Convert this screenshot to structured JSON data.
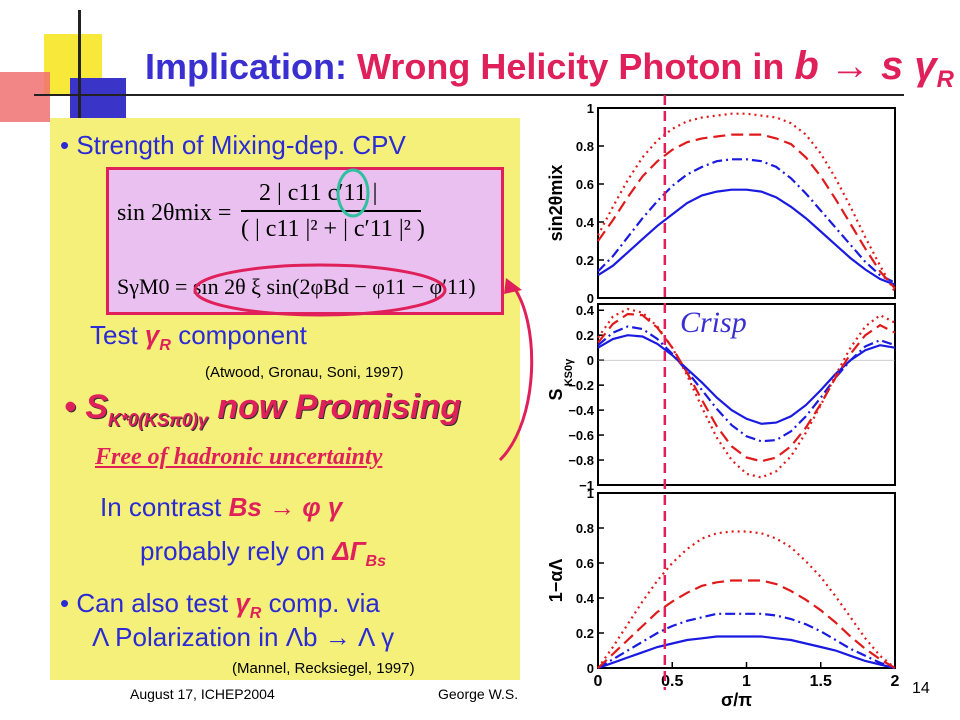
{
  "title": {
    "part1": "Implication",
    "colon": ":",
    "part2": "Wrong Helicity Photon in",
    "process": "b → s γ",
    "process_sub": "R"
  },
  "bullets": {
    "b1": "Strength of Mixing-dep. CPV",
    "test_prefix": "Test",
    "test_gamma": "γ",
    "test_sub": "R",
    "test_suffix": "component",
    "citation1": "(Atwood, Gronau, Soni, 1997)",
    "b2_main": "S",
    "b2_sub": "K*0(KSπ0)γ",
    "b2_rest": "now Promising",
    "b2_free": "Free of hadronic uncertainty",
    "contrast_prefix": "In contrast",
    "contrast_proc": "Bs → φ γ",
    "rely_prefix": "probably rely on",
    "rely_sym": "ΔΓ",
    "rely_sub": "Bs",
    "b3_prefix": "Can also test",
    "b3_gamma": "γ",
    "b3_sub": "R",
    "b3_suffix": "comp. via",
    "lambda_line": "Λ Polarization in Λb → Λ γ",
    "citation2": "(Mannel, Recksiegel, 1997)"
  },
  "formula": {
    "line1_lhs": "sin 2θmix =",
    "line1_num": "2 | c11 c′11 |",
    "line1_den": "( | c11 |² + | c′11 |² )",
    "line2": "SγM0 = sin 2θ ξ sin(2φBd − φ11 − φ′11)"
  },
  "annotation": {
    "crisp": "Crisp"
  },
  "footer": {
    "date": "August 17, ICHEP2004",
    "author": "George W.S.",
    "page": "14"
  },
  "colors": {
    "title_blue": "#3a2fd0",
    "accent_red": "#e0205a",
    "panel_yellow": "#f4f07a",
    "formula_bg": "#e9c0ef",
    "curve_blue": "#1a1ae0",
    "curve_red": "#e01a1a",
    "circle_cyan": "#30c0a0"
  },
  "chart_data": [
    {
      "type": "line",
      "ylabel": "sin2θmix",
      "xlim": [
        0,
        2
      ],
      "ylim": [
        0,
        1
      ],
      "yticks": [
        "0",
        "0.2",
        "0.4",
        "0.6",
        "0.8",
        "1"
      ],
      "x": [
        0,
        0.1,
        0.2,
        0.3,
        0.4,
        0.5,
        0.6,
        0.7,
        0.8,
        0.9,
        1.0,
        1.1,
        1.2,
        1.3,
        1.4,
        1.5,
        1.6,
        1.7,
        1.8,
        1.9,
        2.0
      ],
      "series": [
        {
          "style": "solid",
          "color": "#1a1ae0",
          "values": [
            0.12,
            0.17,
            0.24,
            0.31,
            0.38,
            0.44,
            0.5,
            0.54,
            0.56,
            0.57,
            0.57,
            0.56,
            0.53,
            0.48,
            0.42,
            0.35,
            0.28,
            0.21,
            0.15,
            0.1,
            0.07
          ]
        },
        {
          "style": "dashdot",
          "color": "#1a1ae0",
          "values": [
            0.14,
            0.22,
            0.32,
            0.42,
            0.51,
            0.59,
            0.65,
            0.69,
            0.72,
            0.73,
            0.73,
            0.72,
            0.69,
            0.63,
            0.55,
            0.46,
            0.37,
            0.28,
            0.19,
            0.12,
            0.08
          ]
        },
        {
          "style": "dashed",
          "color": "#e01a1a",
          "values": [
            0.3,
            0.41,
            0.53,
            0.64,
            0.72,
            0.78,
            0.82,
            0.84,
            0.85,
            0.86,
            0.86,
            0.86,
            0.84,
            0.81,
            0.74,
            0.64,
            0.52,
            0.39,
            0.26,
            0.14,
            0.05
          ]
        },
        {
          "style": "dotted",
          "color": "#e01a1a",
          "values": [
            0.33,
            0.48,
            0.62,
            0.74,
            0.83,
            0.89,
            0.93,
            0.95,
            0.96,
            0.97,
            0.97,
            0.96,
            0.95,
            0.92,
            0.86,
            0.76,
            0.63,
            0.48,
            0.32,
            0.17,
            0.03
          ]
        }
      ]
    },
    {
      "type": "line",
      "ylabel": "S",
      "ylabel_sub": "KS0γ",
      "xlim": [
        0,
        2
      ],
      "ylim": [
        -1,
        0.45
      ],
      "yticks": [
        "−1",
        "−0.8",
        "−0.6",
        "−0.4",
        "−0.2",
        "0",
        "0.2",
        "0.4"
      ],
      "x": [
        0,
        0.1,
        0.2,
        0.3,
        0.4,
        0.5,
        0.6,
        0.7,
        0.8,
        0.9,
        1.0,
        1.1,
        1.2,
        1.3,
        1.4,
        1.5,
        1.6,
        1.7,
        1.8,
        1.9,
        2.0
      ],
      "series": [
        {
          "style": "solid",
          "color": "#1a1ae0",
          "values": [
            0.1,
            0.17,
            0.2,
            0.19,
            0.13,
            0.04,
            -0.07,
            -0.18,
            -0.3,
            -0.4,
            -0.47,
            -0.51,
            -0.5,
            -0.45,
            -0.36,
            -0.24,
            -0.11,
            0.0,
            0.08,
            0.12,
            0.1
          ]
        },
        {
          "style": "dashdot",
          "color": "#1a1ae0",
          "values": [
            0.12,
            0.22,
            0.27,
            0.25,
            0.17,
            0.05,
            -0.09,
            -0.24,
            -0.39,
            -0.52,
            -0.61,
            -0.65,
            -0.64,
            -0.57,
            -0.45,
            -0.3,
            -0.14,
            0.0,
            0.11,
            0.16,
            0.12
          ]
        },
        {
          "style": "dashed",
          "color": "#e01a1a",
          "values": [
            0.14,
            0.29,
            0.37,
            0.36,
            0.26,
            0.1,
            -0.1,
            -0.32,
            -0.53,
            -0.69,
            -0.78,
            -0.81,
            -0.78,
            -0.69,
            -0.54,
            -0.35,
            -0.14,
            0.05,
            0.2,
            0.28,
            0.22
          ]
        },
        {
          "style": "dotted",
          "color": "#e01a1a",
          "values": [
            0.18,
            0.35,
            0.41,
            0.38,
            0.27,
            0.1,
            -0.12,
            -0.38,
            -0.62,
            -0.8,
            -0.91,
            -0.94,
            -0.89,
            -0.77,
            -0.58,
            -0.36,
            -0.12,
            0.1,
            0.27,
            0.36,
            0.3
          ]
        }
      ]
    },
    {
      "type": "line",
      "ylabel": "1−αΛ",
      "xlabel": "σ/π",
      "xlim": [
        0,
        2
      ],
      "ylim": [
        0,
        1
      ],
      "xticks": [
        "0",
        "0.5",
        "1",
        "1.5",
        "2"
      ],
      "yticks": [
        "0",
        "0.2",
        "0.4",
        "0.6",
        "0.8",
        "1"
      ],
      "x": [
        0,
        0.1,
        0.2,
        0.3,
        0.4,
        0.5,
        0.6,
        0.7,
        0.8,
        0.9,
        1.0,
        1.1,
        1.2,
        1.3,
        1.4,
        1.5,
        1.6,
        1.7,
        1.8,
        1.9,
        2.0
      ],
      "series": [
        {
          "style": "solid",
          "color": "#1a1ae0",
          "values": [
            0.0,
            0.03,
            0.06,
            0.09,
            0.12,
            0.14,
            0.16,
            0.17,
            0.18,
            0.18,
            0.18,
            0.18,
            0.17,
            0.16,
            0.14,
            0.12,
            0.1,
            0.07,
            0.04,
            0.02,
            0.0
          ]
        },
        {
          "style": "dashdot",
          "color": "#1a1ae0",
          "values": [
            0.0,
            0.05,
            0.1,
            0.15,
            0.2,
            0.24,
            0.27,
            0.29,
            0.31,
            0.31,
            0.31,
            0.31,
            0.3,
            0.28,
            0.25,
            0.21,
            0.16,
            0.11,
            0.07,
            0.03,
            0.0
          ]
        },
        {
          "style": "dashed",
          "color": "#e01a1a",
          "values": [
            0.0,
            0.08,
            0.16,
            0.24,
            0.32,
            0.38,
            0.43,
            0.47,
            0.49,
            0.5,
            0.5,
            0.5,
            0.48,
            0.44,
            0.39,
            0.33,
            0.26,
            0.18,
            0.11,
            0.05,
            0.0
          ]
        },
        {
          "style": "dotted",
          "color": "#e01a1a",
          "values": [
            0.0,
            0.12,
            0.25,
            0.38,
            0.5,
            0.6,
            0.68,
            0.74,
            0.77,
            0.78,
            0.78,
            0.77,
            0.74,
            0.69,
            0.61,
            0.52,
            0.41,
            0.29,
            0.17,
            0.07,
            0.0
          ]
        }
      ]
    }
  ]
}
